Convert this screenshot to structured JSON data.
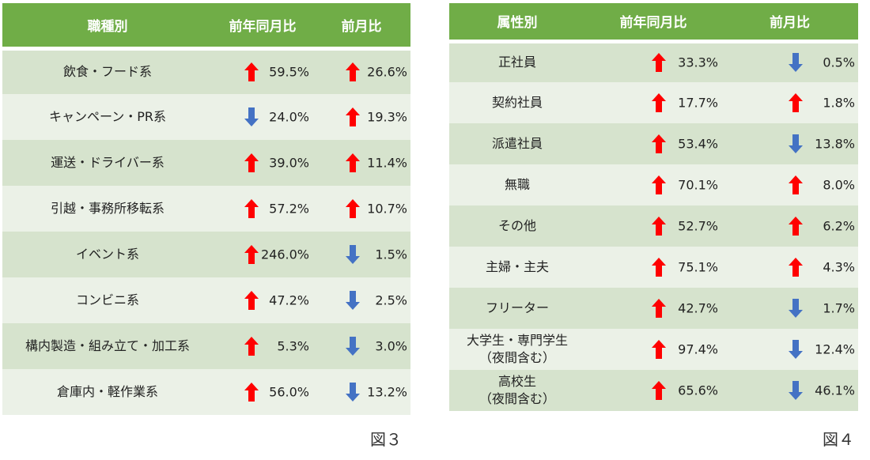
{
  "colors": {
    "header": "#70ad47",
    "row_odd": "#d6e3cd",
    "row_even": "#ebf1e7",
    "up": "#ff0000",
    "down": "#4472c4"
  },
  "chart_data": [
    {
      "type": "table",
      "caption": "図３",
      "columns": [
        "職種別",
        "前年同月比",
        "前月比"
      ],
      "rows": [
        {
          "label": "飲食・フード系",
          "yoy": "59.5%",
          "yoy_dir": "up",
          "mom": "26.6%",
          "mom_dir": "up"
        },
        {
          "label": "キャンペーン・PR系",
          "yoy": "24.0%",
          "yoy_dir": "down",
          "mom": "19.3%",
          "mom_dir": "up"
        },
        {
          "label": "運送・ドライバー系",
          "yoy": "39.0%",
          "yoy_dir": "up",
          "mom": "11.4%",
          "mom_dir": "up"
        },
        {
          "label": "引越・事務所移転系",
          "yoy": "57.2%",
          "yoy_dir": "up",
          "mom": "10.7%",
          "mom_dir": "up"
        },
        {
          "label": "イベント系",
          "yoy": "246.0%",
          "yoy_dir": "up",
          "mom": "1.5%",
          "mom_dir": "down"
        },
        {
          "label": "コンビニ系",
          "yoy": "47.2%",
          "yoy_dir": "up",
          "mom": "2.5%",
          "mom_dir": "down"
        },
        {
          "label": "構内製造・組み立て・加工系",
          "yoy": "5.3%",
          "yoy_dir": "up",
          "mom": "3.0%",
          "mom_dir": "down"
        },
        {
          "label": "倉庫内・軽作業系",
          "yoy": "56.0%",
          "yoy_dir": "up",
          "mom": "13.2%",
          "mom_dir": "down"
        }
      ]
    },
    {
      "type": "table",
      "caption": "図４",
      "columns": [
        "属性別",
        "前年同月比",
        "前月比"
      ],
      "rows": [
        {
          "label": "正社員",
          "yoy": "33.3%",
          "yoy_dir": "up",
          "mom": "0.5%",
          "mom_dir": "down"
        },
        {
          "label": "契約社員",
          "yoy": "17.7%",
          "yoy_dir": "up",
          "mom": "1.8%",
          "mom_dir": "up"
        },
        {
          "label": "派遣社員",
          "yoy": "53.4%",
          "yoy_dir": "up",
          "mom": "13.8%",
          "mom_dir": "down"
        },
        {
          "label": "無職",
          "yoy": "70.1%",
          "yoy_dir": "up",
          "mom": "8.0%",
          "mom_dir": "up"
        },
        {
          "label": "その他",
          "yoy": "52.7%",
          "yoy_dir": "up",
          "mom": "6.2%",
          "mom_dir": "up"
        },
        {
          "label": "主婦・主夫",
          "yoy": "75.1%",
          "yoy_dir": "up",
          "mom": "4.3%",
          "mom_dir": "up"
        },
        {
          "label": "フリーター",
          "yoy": "42.7%",
          "yoy_dir": "up",
          "mom": "1.7%",
          "mom_dir": "down"
        },
        {
          "label": "大学生・専門学生\n（夜間含む）",
          "yoy": "97.4%",
          "yoy_dir": "up",
          "mom": "12.4%",
          "mom_dir": "down"
        },
        {
          "label": "高校生\n（夜間含む）",
          "yoy": "65.6%",
          "yoy_dir": "up",
          "mom": "46.1%",
          "mom_dir": "down"
        }
      ]
    }
  ]
}
